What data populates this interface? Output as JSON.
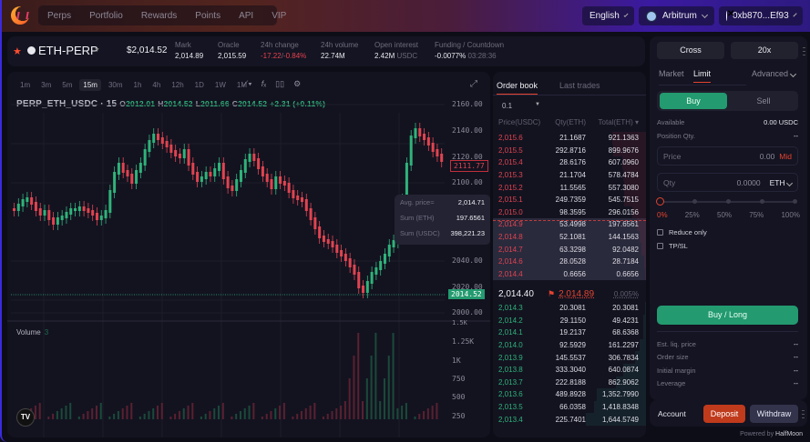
{
  "nav": {
    "tabs": [
      "Perps",
      "Portfolio",
      "Rewards",
      "Points",
      "API",
      "VIP"
    ],
    "language": "English",
    "network": "Arbitrum",
    "wallet": "0xb870...Ef93"
  },
  "market": {
    "symbol": "ETH-PERP",
    "price": "$2,014.52",
    "stats": [
      {
        "label": "Mark",
        "value": "2,014.89"
      },
      {
        "label": "Oracle",
        "value": "2,015.59"
      },
      {
        "label": "24h change",
        "value": "-17.22",
        "value2": "-0.84%"
      },
      {
        "label": "24h volume",
        "value": "22.74M"
      },
      {
        "label": "Open interest",
        "value": "2.42M",
        "unit": "USDC"
      },
      {
        "label": "Funding / Countdown",
        "value": "-0.0077%",
        "countdown": "03:28:36"
      }
    ]
  },
  "chart": {
    "timeframes": [
      "1m",
      "3m",
      "5m",
      "15m",
      "30m",
      "1h",
      "4h",
      "12h",
      "1D",
      "1W",
      "1M"
    ],
    "active_timeframe": "15m",
    "title": "PERP_ETH_USDC · 15",
    "ohlc": {
      "o": "2012.01",
      "h": "2014.52",
      "l": "2011.66",
      "c": "2014.52",
      "change": "+2.31 (+0.11%)"
    },
    "y_ticks": [
      "2160.00",
      "2140.00",
      "2120.00",
      "2100.00",
      "2040.00",
      "2020.00",
      "2000.00"
    ],
    "last_price_tag": "2014.52",
    "cursor_price_tag": "2111.77",
    "volume_label": "Volume",
    "volume_value": "3",
    "volume_ticks": [
      "1.5K",
      "1.25K",
      "1K",
      "750",
      "500",
      "250"
    ],
    "tooltip": {
      "avg_price_label": "Avg. price≈",
      "avg_price": "2,014.71",
      "sum_eth_label": "Sum (ETH)",
      "sum_eth": "197.6561",
      "sum_usdc_label": "Sum (USDC)",
      "sum_usdc": "398,221.23"
    },
    "tv_logo": "TV"
  },
  "chart_data": {
    "type": "candlestick",
    "title": "PERP_ETH_USDC · 15",
    "ylim": [
      2000,
      2165
    ],
    "y_ticks": [
      2000,
      2020,
      2040,
      2100,
      2120,
      2140,
      2160
    ],
    "last_price": 2014.52,
    "ohlc_last": {
      "open": 2012.01,
      "high": 2014.52,
      "low": 2011.66,
      "close": 2014.52
    }
  },
  "orderbook": {
    "tabs": [
      "Order book",
      "Last trades"
    ],
    "grouping": "0.1",
    "headers": [
      "Price(USDC)",
      "Qty(ETH)",
      "Total(ETH)"
    ],
    "asks": [
      {
        "price": "2,015.6",
        "qty": "21.1687",
        "total": "921.1363",
        "depth": 56
      },
      {
        "price": "2,015.5",
        "qty": "292.8716",
        "total": "899.9676",
        "depth": 55
      },
      {
        "price": "2,015.4",
        "qty": "28.6176",
        "total": "607.0960",
        "depth": 40
      },
      {
        "price": "2,015.3",
        "qty": "21.1704",
        "total": "578.4784",
        "depth": 38
      },
      {
        "price": "2,015.2",
        "qty": "11.5565",
        "total": "557.3080",
        "depth": 37
      },
      {
        "price": "2,015.1",
        "qty": "249.7359",
        "total": "545.7515",
        "depth": 36
      },
      {
        "price": "2,015.0",
        "qty": "98.3595",
        "total": "296.0156",
        "depth": 22
      },
      {
        "price": "2,014.9",
        "qty": "53.4998",
        "total": "197.6561",
        "depth": 15
      },
      {
        "price": "2,014.8",
        "qty": "52.1081",
        "total": "144.1563",
        "depth": 11
      },
      {
        "price": "2,014.7",
        "qty": "63.3298",
        "total": "92.0482",
        "depth": 7
      },
      {
        "price": "2,014.6",
        "qty": "28.0528",
        "total": "28.7184",
        "depth": 3
      },
      {
        "price": "2,014.4",
        "qty": "0.6656",
        "total": "0.6656",
        "depth": 1
      }
    ],
    "mid": {
      "last": "2,014.40",
      "mark": "2,014.89",
      "spread": "0.005%"
    },
    "bids": [
      {
        "price": "2,014.3",
        "qty": "20.3081",
        "total": "20.3081",
        "depth": 2
      },
      {
        "price": "2,014.2",
        "qty": "29.1150",
        "total": "49.4231",
        "depth": 4
      },
      {
        "price": "2,014.1",
        "qty": "19.2137",
        "total": "68.6368",
        "depth": 5
      },
      {
        "price": "2,014.0",
        "qty": "92.5929",
        "total": "161.2297",
        "depth": 11
      },
      {
        "price": "2,013.9",
        "qty": "145.5537",
        "total": "306.7834",
        "depth": 18
      },
      {
        "price": "2,013.8",
        "qty": "333.3040",
        "total": "640.0874",
        "depth": 38
      },
      {
        "price": "2,013.7",
        "qty": "222.8188",
        "total": "862.9062",
        "depth": 50
      },
      {
        "price": "2,013.6",
        "qty": "489.8928",
        "total": "1,352.7990",
        "depth": 82
      },
      {
        "price": "2,013.5",
        "qty": "66.0358",
        "total": "1,418.8348",
        "depth": 86
      },
      {
        "price": "2,013.4",
        "qty": "225.7401",
        "total": "1,644.5749",
        "depth": 100
      }
    ]
  },
  "trade": {
    "margin_mode": "Cross",
    "leverage": "20x",
    "order_types": [
      "Market",
      "Limit"
    ],
    "active_order_type": "Limit",
    "advanced": "Advanced",
    "buy": "Buy",
    "sell": "Sell",
    "available_label": "Available",
    "available": "0.00 USDC",
    "position_label": "Position Qty.",
    "position": "--",
    "price_label": "Price",
    "price_value": "0.00",
    "price_mid": "Mid",
    "qty_label": "Qty",
    "qty_value": "0.0000",
    "qty_unit": "ETH",
    "percents": [
      "0%",
      "25%",
      "50%",
      "75%",
      "100%"
    ],
    "reduce_only": "Reduce only",
    "tpsl": "TP/SL",
    "submit": "Buy / Long",
    "summary": [
      {
        "label": "Est. liq. price",
        "value": "--"
      },
      {
        "label": "Order size",
        "value": "--"
      },
      {
        "label": "Initial margin",
        "value": "--"
      },
      {
        "label": "Leverage",
        "value": "--"
      }
    ]
  },
  "account": {
    "label": "Account",
    "deposit": "Deposit",
    "withdraw": "Withdraw"
  },
  "footer": {
    "powered_by": "Powered by",
    "brand": "HalfMoon"
  },
  "colors": {
    "up": "#2fb37a",
    "down": "#e04450",
    "accent": "#e5432f",
    "buy": "#239a6f",
    "deposit": "#c03a1c"
  }
}
